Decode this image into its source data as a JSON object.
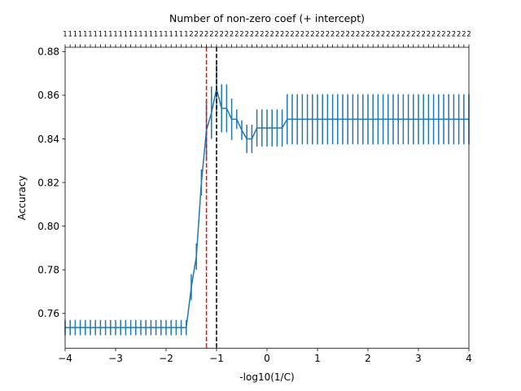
{
  "chart_data": {
    "type": "line",
    "title": "Number of non-zero coef (+ intercept)",
    "xlabel": "-log10(1/C)",
    "ylabel": "Accuracy",
    "xlim": [
      -4,
      4
    ],
    "ylim": [
      0.744,
      0.882
    ],
    "xticks": [
      -4,
      -3,
      -2,
      -1,
      0,
      1,
      2,
      3,
      4
    ],
    "xtick_labels": [
      "−4",
      "−3",
      "−2",
      "−1",
      "0",
      "1",
      "2",
      "3",
      "4"
    ],
    "yticks": [
      0.76,
      0.78,
      0.8,
      0.82,
      0.84,
      0.86,
      0.88
    ],
    "ytick_labels": [
      "0.76",
      "0.78",
      "0.80",
      "0.82",
      "0.84",
      "0.86",
      "0.88"
    ],
    "grid": false,
    "legend": "none",
    "series_color": "#1f77b4",
    "x_start": -4,
    "x_step": 0.1,
    "mean": [
      0.7535,
      0.7535,
      0.7535,
      0.7535,
      0.7535,
      0.7535,
      0.7535,
      0.7535,
      0.7535,
      0.7535,
      0.7535,
      0.7535,
      0.7535,
      0.7535,
      0.7535,
      0.7535,
      0.7535,
      0.7535,
      0.7535,
      0.7535,
      0.7535,
      0.7535,
      0.7535,
      0.7535,
      0.7535,
      0.772,
      0.786,
      0.82,
      0.844,
      0.852,
      0.863,
      0.854,
      0.854,
      0.849,
      0.849,
      0.844,
      0.84,
      0.84,
      0.845,
      0.845,
      0.845,
      0.845,
      0.845,
      0.845,
      0.849,
      0.849,
      0.849,
      0.849,
      0.849,
      0.849,
      0.849,
      0.849,
      0.849,
      0.849,
      0.849,
      0.849,
      0.849,
      0.849,
      0.849,
      0.849,
      0.849,
      0.849,
      0.849,
      0.849,
      0.849,
      0.849,
      0.849,
      0.849,
      0.849,
      0.849,
      0.849,
      0.849,
      0.849,
      0.849,
      0.849,
      0.849,
      0.849,
      0.849,
      0.849,
      0.849,
      0.849
    ],
    "err": [
      0.0035,
      0.0035,
      0.0035,
      0.0035,
      0.0035,
      0.0035,
      0.0035,
      0.0035,
      0.0035,
      0.0035,
      0.0035,
      0.0035,
      0.0035,
      0.0035,
      0.0035,
      0.0035,
      0.0035,
      0.0035,
      0.0035,
      0.0035,
      0.0035,
      0.0035,
      0.0035,
      0.0035,
      0.0035,
      0.006,
      0.006,
      0.006,
      0.0135,
      0.012,
      0.013,
      0.011,
      0.011,
      0.0095,
      0.0045,
      0.0045,
      0.0065,
      0.0065,
      0.0085,
      0.0085,
      0.0085,
      0.0085,
      0.0085,
      0.0085,
      0.0115,
      0.0115,
      0.0115,
      0.0115,
      0.0115,
      0.0115,
      0.0115,
      0.0115,
      0.0115,
      0.0115,
      0.0115,
      0.0115,
      0.0115,
      0.0115,
      0.0115,
      0.0115,
      0.0115,
      0.0115,
      0.0115,
      0.0115,
      0.0115,
      0.0115,
      0.0115,
      0.0115,
      0.0115,
      0.0115,
      0.0115,
      0.0115,
      0.0115,
      0.0115,
      0.0115,
      0.0115,
      0.0115,
      0.0115,
      0.0115,
      0.0115,
      0.0115
    ],
    "top_tick_labels": [
      "1",
      "1",
      "1",
      "1",
      "1",
      "1",
      "1",
      "1",
      "1",
      "1",
      "1",
      "1",
      "1",
      "1",
      "1",
      "1",
      "1",
      "1",
      "1",
      "1",
      "1",
      "1",
      "1",
      "1",
      "1",
      "2",
      "2",
      "2",
      "2",
      "2",
      "2",
      "2",
      "2",
      "2",
      "2",
      "2",
      "2",
      "2",
      "2",
      "2",
      "2",
      "2",
      "2",
      "2",
      "2",
      "2",
      "2",
      "2",
      "2",
      "2",
      "2",
      "2",
      "2",
      "2",
      "2",
      "2",
      "2",
      "2",
      "2",
      "2",
      "2",
      "2",
      "2",
      "2",
      "2",
      "2",
      "2",
      "2",
      "2",
      "2",
      "2",
      "2",
      "2",
      "2",
      "2",
      "2",
      "2",
      "2",
      "2",
      "2",
      "2"
    ],
    "vlines": [
      {
        "x": -1.2,
        "color": "#ff0000",
        "style": "dashed"
      },
      {
        "x": -1.0,
        "color": "#000000",
        "style": "dashed"
      }
    ]
  }
}
